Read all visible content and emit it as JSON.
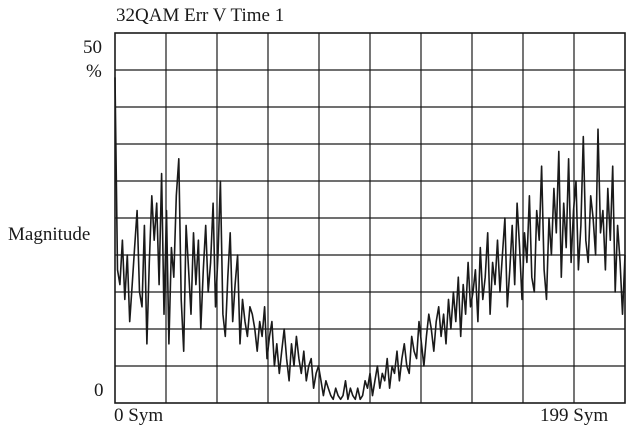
{
  "chart_data": {
    "type": "line",
    "title": "32QAM Err V  Time 1",
    "xlabel": "",
    "ylabel": "Magnitude",
    "y_top_label": "50",
    "y_unit": "%",
    "y_bottom_label": "0",
    "x_left_label": "0  Sym",
    "x_right_label": "199  Sym",
    "xlim": [
      0,
      199
    ],
    "ylim": [
      0,
      50
    ],
    "grid": true,
    "grid_divisions_x": 10,
    "grid_divisions_y": 10,
    "line_color": "#1a1a1a",
    "series": [
      {
        "values": [
          44,
          18,
          16,
          22,
          14,
          20,
          11,
          16,
          21,
          26,
          15,
          13,
          24,
          8,
          19,
          28,
          22,
          27,
          16,
          31,
          12,
          26,
          8,
          21,
          17,
          28,
          33,
          14,
          7,
          24,
          18,
          12,
          23,
          16,
          22,
          10,
          18,
          24,
          15,
          19,
          27,
          13,
          20,
          30,
          12,
          9,
          17,
          23,
          11,
          16,
          20,
          8,
          14,
          11,
          9,
          13,
          12,
          10,
          7,
          11,
          9,
          13,
          6,
          9,
          11,
          5,
          8,
          4,
          7,
          10,
          6,
          3,
          8,
          5,
          9,
          6,
          4,
          7,
          3,
          5,
          6,
          2,
          4,
          5,
          3,
          1,
          3,
          2,
          1,
          0.5,
          2,
          1,
          0.5,
          1,
          3,
          0.5,
          2,
          1,
          0.5,
          2,
          0.5,
          1,
          3,
          2,
          4,
          1,
          3,
          5,
          2,
          4,
          3,
          6,
          2,
          5,
          4,
          7,
          3,
          6,
          8,
          5,
          4,
          9,
          7,
          6,
          11,
          8,
          5,
          9,
          12,
          10,
          7,
          11,
          13,
          9,
          12,
          8,
          14,
          10,
          15,
          11,
          17,
          9,
          16,
          12,
          19,
          13,
          15,
          18,
          11,
          21,
          14,
          17,
          23,
          12,
          19,
          16,
          22,
          15,
          20,
          25,
          13,
          18,
          24,
          16,
          27,
          21,
          14,
          23,
          19,
          28,
          17,
          15,
          26,
          22,
          32,
          18,
          14,
          25,
          20,
          29,
          23,
          34,
          17,
          27,
          21,
          33,
          19,
          26,
          30,
          18,
          24,
          36,
          22,
          19,
          28,
          25,
          20,
          37,
          23,
          26,
          18,
          29,
          22,
          32,
          15,
          24,
          19,
          12,
          20
        ]
      }
    ]
  }
}
